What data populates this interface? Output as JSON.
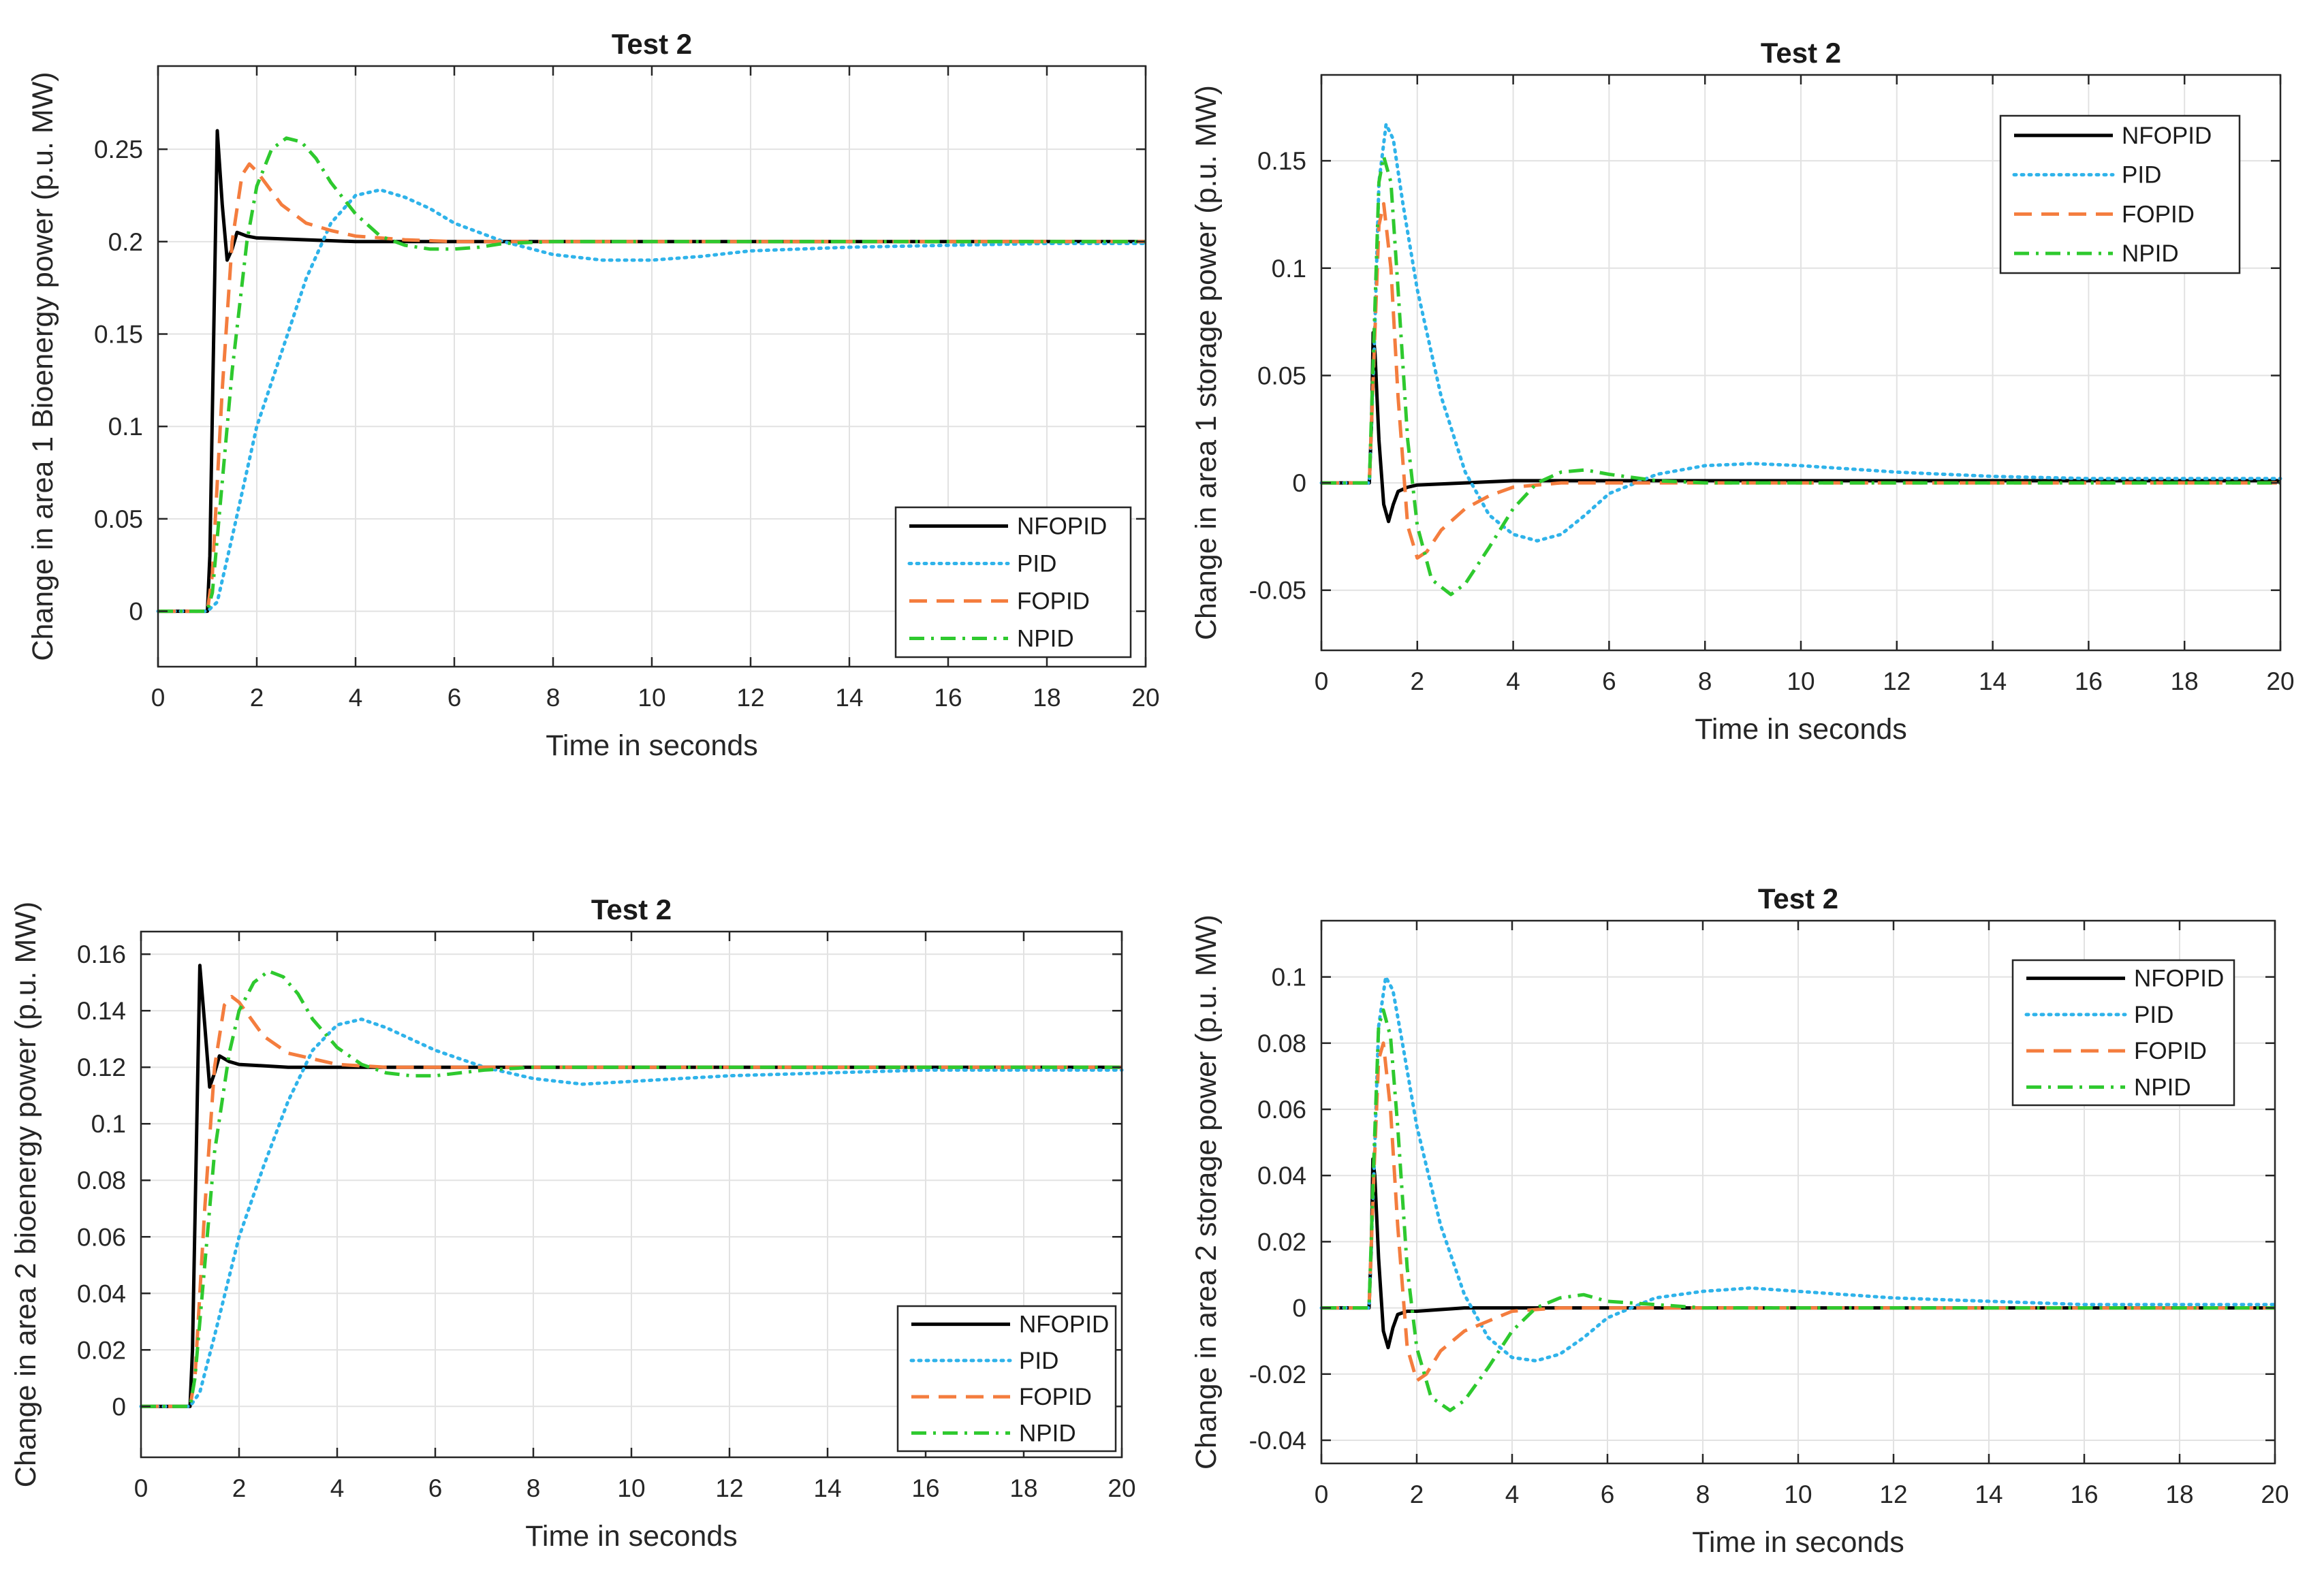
{
  "chart_data": [
    {
      "type": "line",
      "title": "Test 2",
      "xlabel": "Time in seconds",
      "ylabel": "Change in area 1 Bioenergy power (p.u. MW)",
      "xlim": [
        0,
        20
      ],
      "ylim": [
        -0.03,
        0.295
      ],
      "xticks": [
        "0",
        "2",
        "4",
        "6",
        "8",
        "10",
        "12",
        "14",
        "16",
        "18",
        "20"
      ],
      "yticks": [
        "0",
        "0.05",
        "0.1",
        "0.15",
        "0.2",
        "0.25"
      ],
      "grid": true,
      "legend": "bottom-right",
      "series": [
        {
          "name": "NFOPID",
          "x": [
            0,
            1,
            1.05,
            1.2,
            1.3,
            1.4,
            1.5,
            1.6,
            1.8,
            2,
            3,
            4,
            5,
            6,
            8,
            10,
            14,
            20
          ],
          "y": [
            0,
            0,
            0.03,
            0.26,
            0.22,
            0.19,
            0.196,
            0.205,
            0.203,
            0.202,
            0.201,
            0.2,
            0.2,
            0.2,
            0.2,
            0.2,
            0.2,
            0.2
          ]
        },
        {
          "name": "PID",
          "x": [
            0,
            1,
            1.2,
            1.5,
            2,
            2.5,
            3,
            3.5,
            4,
            4.5,
            5,
            5.5,
            6,
            7,
            8,
            9,
            10,
            11,
            12,
            14,
            16,
            18,
            20
          ],
          "y": [
            0,
            0,
            0.005,
            0.04,
            0.1,
            0.14,
            0.18,
            0.21,
            0.225,
            0.228,
            0.224,
            0.218,
            0.21,
            0.2,
            0.193,
            0.19,
            0.19,
            0.192,
            0.195,
            0.197,
            0.198,
            0.199,
            0.199
          ]
        },
        {
          "name": "FOPID",
          "x": [
            0,
            1,
            1.1,
            1.3,
            1.5,
            1.7,
            1.85,
            2,
            2.5,
            3,
            3.5,
            4,
            5,
            6,
            7,
            8,
            10,
            20
          ],
          "y": [
            0,
            0,
            0.02,
            0.12,
            0.2,
            0.236,
            0.242,
            0.238,
            0.22,
            0.21,
            0.206,
            0.203,
            0.201,
            0.2,
            0.2,
            0.2,
            0.2,
            0.2
          ]
        },
        {
          "name": "NPID",
          "x": [
            0,
            1,
            1.1,
            1.3,
            1.5,
            1.8,
            2,
            2.3,
            2.6,
            2.9,
            3.2,
            3.5,
            4,
            4.5,
            5,
            5.5,
            6,
            6.5,
            7,
            8,
            9,
            10,
            12,
            20
          ],
          "y": [
            0,
            0,
            0.01,
            0.07,
            0.13,
            0.2,
            0.23,
            0.25,
            0.256,
            0.254,
            0.245,
            0.232,
            0.215,
            0.203,
            0.198,
            0.196,
            0.196,
            0.197,
            0.199,
            0.2,
            0.2,
            0.2,
            0.2,
            0.2
          ]
        }
      ]
    },
    {
      "type": "line",
      "title": "Test 2",
      "xlabel": "Time in seconds",
      "ylabel": "Change in area 1 storage power (p.u. MW)",
      "xlim": [
        0,
        20
      ],
      "ylim": [
        -0.078,
        0.19
      ],
      "xticks": [
        "0",
        "2",
        "4",
        "6",
        "8",
        "10",
        "12",
        "14",
        "16",
        "18",
        "20"
      ],
      "yticks": [
        "-0.05",
        "0",
        "0.05",
        "0.1",
        "0.15"
      ],
      "grid": true,
      "legend": "top-right",
      "series": [
        {
          "name": "NFOPID",
          "x": [
            0,
            1,
            1.05,
            1.08,
            1.12,
            1.2,
            1.3,
            1.4,
            1.5,
            1.6,
            1.8,
            2,
            3,
            4,
            5,
            20
          ],
          "y": [
            0,
            0,
            0.03,
            0.07,
            0.06,
            0.02,
            -0.01,
            -0.018,
            -0.01,
            -0.004,
            -0.002,
            -0.001,
            0,
            0.001,
            0.001,
            0.001
          ]
        },
        {
          "name": "PID",
          "x": [
            0,
            1,
            1.1,
            1.2,
            1.35,
            1.5,
            1.7,
            2,
            2.5,
            3,
            3.5,
            4,
            4.5,
            5,
            5.5,
            6,
            7,
            8,
            9,
            10,
            12,
            14,
            16,
            20
          ],
          "y": [
            0,
            0,
            0.06,
            0.14,
            0.167,
            0.16,
            0.13,
            0.09,
            0.04,
            0.005,
            -0.015,
            -0.024,
            -0.027,
            -0.024,
            -0.015,
            -0.005,
            0.004,
            0.008,
            0.009,
            0.008,
            0.005,
            0.003,
            0.002,
            0.002
          ]
        },
        {
          "name": "FOPID",
          "x": [
            0,
            1,
            1.1,
            1.2,
            1.3,
            1.45,
            1.6,
            1.8,
            2,
            2.2,
            2.5,
            3,
            3.5,
            4,
            5,
            6,
            7,
            20
          ],
          "y": [
            0,
            0,
            0.06,
            0.12,
            0.13,
            0.1,
            0.04,
            -0.02,
            -0.035,
            -0.032,
            -0.022,
            -0.012,
            -0.006,
            -0.002,
            0,
            0,
            0,
            0
          ]
        },
        {
          "name": "NPID",
          "x": [
            0,
            1,
            1.1,
            1.2,
            1.3,
            1.45,
            1.6,
            1.8,
            2,
            2.3,
            2.7,
            3,
            3.5,
            4,
            4.5,
            5,
            5.5,
            6,
            7,
            8,
            20
          ],
          "y": [
            0,
            0,
            0.07,
            0.14,
            0.152,
            0.14,
            0.09,
            0.02,
            -0.02,
            -0.045,
            -0.052,
            -0.047,
            -0.03,
            -0.012,
            0,
            0.005,
            0.006,
            0.004,
            0.001,
            0,
            0
          ]
        }
      ]
    },
    {
      "type": "line",
      "title": "Test 2",
      "xlabel": "Time in seconds",
      "ylabel": "Change in area 2 bioenergy power (p.u. MW)",
      "xlim": [
        0,
        20
      ],
      "ylim": [
        -0.018,
        0.168
      ],
      "xticks": [
        "0",
        "2",
        "4",
        "6",
        "8",
        "10",
        "12",
        "14",
        "16",
        "18",
        "20"
      ],
      "yticks": [
        "0",
        "0.02",
        "0.04",
        "0.06",
        "0.08",
        "0.1",
        "0.12",
        "0.14",
        "0.16"
      ],
      "grid": true,
      "legend": "bottom-right",
      "series": [
        {
          "name": "NFOPID",
          "x": [
            0,
            1,
            1.05,
            1.2,
            1.3,
            1.4,
            1.5,
            1.6,
            1.8,
            2,
            3,
            4,
            5,
            6,
            8,
            20
          ],
          "y": [
            0,
            0,
            0.02,
            0.156,
            0.135,
            0.113,
            0.118,
            0.124,
            0.122,
            0.121,
            0.12,
            0.12,
            0.12,
            0.12,
            0.12,
            0.12
          ]
        },
        {
          "name": "PID",
          "x": [
            0,
            1,
            1.2,
            1.5,
            2,
            2.5,
            3,
            3.5,
            4,
            4.5,
            5,
            5.5,
            6,
            7,
            8,
            9,
            10,
            11,
            12,
            14,
            16,
            18,
            20
          ],
          "y": [
            0,
            0,
            0.005,
            0.025,
            0.06,
            0.085,
            0.108,
            0.126,
            0.135,
            0.137,
            0.134,
            0.13,
            0.126,
            0.12,
            0.116,
            0.114,
            0.115,
            0.116,
            0.117,
            0.118,
            0.119,
            0.119,
            0.119
          ]
        },
        {
          "name": "FOPID",
          "x": [
            0,
            1,
            1.1,
            1.3,
            1.5,
            1.7,
            1.85,
            2,
            2.5,
            3,
            3.5,
            4,
            5,
            6,
            7,
            8,
            20
          ],
          "y": [
            0,
            0,
            0.01,
            0.07,
            0.12,
            0.142,
            0.145,
            0.143,
            0.131,
            0.125,
            0.123,
            0.121,
            0.12,
            0.12,
            0.12,
            0.12,
            0.12
          ]
        },
        {
          "name": "NPID",
          "x": [
            0,
            1,
            1.1,
            1.3,
            1.5,
            1.8,
            2,
            2.3,
            2.6,
            2.9,
            3.2,
            3.5,
            4,
            4.5,
            5,
            5.5,
            6,
            6.5,
            7,
            8,
            10,
            20
          ],
          "y": [
            0,
            0,
            0.01,
            0.05,
            0.09,
            0.125,
            0.14,
            0.15,
            0.154,
            0.152,
            0.146,
            0.137,
            0.127,
            0.121,
            0.118,
            0.117,
            0.117,
            0.118,
            0.119,
            0.12,
            0.12,
            0.12
          ]
        }
      ]
    },
    {
      "type": "line",
      "title": "Test 2",
      "xlabel": "Time in seconds",
      "ylabel": "Change in area 2 storage power (p.u. MW)",
      "xlim": [
        0,
        20
      ],
      "ylim": [
        -0.047,
        0.117
      ],
      "xticks": [
        "0",
        "2",
        "4",
        "6",
        "8",
        "10",
        "12",
        "14",
        "16",
        "18",
        "20"
      ],
      "yticks": [
        "-0.04",
        "-0.02",
        "0",
        "0.02",
        "0.04",
        "0.06",
        "0.08",
        "0.1"
      ],
      "grid": true,
      "legend": "top-right",
      "series": [
        {
          "name": "NFOPID",
          "x": [
            0,
            1,
            1.05,
            1.08,
            1.12,
            1.2,
            1.3,
            1.4,
            1.5,
            1.6,
            1.8,
            2,
            3,
            4,
            5,
            20
          ],
          "y": [
            0,
            0,
            0.02,
            0.045,
            0.04,
            0.015,
            -0.007,
            -0.012,
            -0.006,
            -0.002,
            -0.001,
            -0.001,
            0,
            0,
            0,
            0
          ]
        },
        {
          "name": "PID",
          "x": [
            0,
            1,
            1.1,
            1.2,
            1.35,
            1.5,
            1.7,
            2,
            2.5,
            3,
            3.5,
            4,
            4.5,
            5,
            5.5,
            6,
            7,
            8,
            9,
            10,
            12,
            14,
            16,
            20
          ],
          "y": [
            0,
            0,
            0.04,
            0.085,
            0.1,
            0.096,
            0.08,
            0.055,
            0.025,
            0.004,
            -0.009,
            -0.015,
            -0.016,
            -0.014,
            -0.009,
            -0.003,
            0.003,
            0.005,
            0.006,
            0.005,
            0.003,
            0.002,
            0.001,
            0.001
          ]
        },
        {
          "name": "FOPID",
          "x": [
            0,
            1,
            1.1,
            1.2,
            1.3,
            1.45,
            1.6,
            1.8,
            2,
            2.2,
            2.5,
            3,
            3.5,
            4,
            5,
            6,
            7,
            20
          ],
          "y": [
            0,
            0,
            0.04,
            0.075,
            0.08,
            0.06,
            0.025,
            -0.012,
            -0.022,
            -0.02,
            -0.013,
            -0.007,
            -0.004,
            -0.001,
            0,
            0,
            0,
            0
          ]
        },
        {
          "name": "NPID",
          "x": [
            0,
            1,
            1.1,
            1.2,
            1.3,
            1.45,
            1.6,
            1.8,
            2,
            2.3,
            2.7,
            3,
            3.5,
            4,
            4.5,
            5,
            5.5,
            6,
            7,
            8,
            20
          ],
          "y": [
            0,
            0,
            0.045,
            0.085,
            0.09,
            0.082,
            0.055,
            0.012,
            -0.012,
            -0.027,
            -0.031,
            -0.028,
            -0.018,
            -0.007,
            0,
            0.003,
            0.004,
            0.002,
            0.001,
            0,
            0
          ]
        }
      ]
    }
  ],
  "series_styles": {
    "NFOPID": {
      "color": "#000000",
      "dash": ""
    },
    "PID": {
      "color": "#2fb3ea",
      "dash": "dotted"
    },
    "FOPID": {
      "color": "#f47d3e",
      "dash": "dashed"
    },
    "NPID": {
      "color": "#2ec92e",
      "dash": "dashdot"
    }
  },
  "colors": {
    "grid": "#e2e2e2",
    "axes": "#262626",
    "background": "#ffffff"
  }
}
